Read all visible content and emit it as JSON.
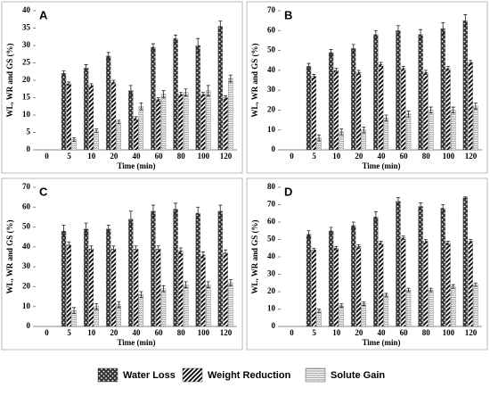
{
  "chart_data": [
    {
      "type": "bar",
      "panel_label": "A",
      "x_label": "Time (min)",
      "y_label": "WL, WR and GS (%)",
      "categories": [
        "0",
        "5",
        "10",
        "20",
        "40",
        "60",
        "80",
        "100",
        "120"
      ],
      "series": [
        {
          "name": "Water Loss",
          "color": "#333333",
          "values": [
            null,
            22,
            23.5,
            27,
            17,
            29.5,
            32,
            30,
            35.5
          ],
          "errors": [
            null,
            0.7,
            1,
            1,
            1.5,
            1,
            1,
            2,
            1.5
          ]
        },
        {
          "name": "Weight Reduction",
          "color": "#000000",
          "values": [
            null,
            19,
            18.5,
            19.5,
            9,
            14.5,
            16,
            16,
            15
          ],
          "errors": [
            null,
            0.5,
            0.5,
            0.5,
            0.5,
            0.5,
            0.5,
            0.5,
            0.5
          ]
        },
        {
          "name": "Solute Gain",
          "color": "#888888",
          "values": [
            null,
            3,
            5.5,
            8,
            12.5,
            16,
            16.5,
            17,
            20.5
          ],
          "errors": [
            null,
            0.5,
            0.5,
            0.5,
            1,
            1,
            1,
            1.5,
            1
          ]
        }
      ],
      "ylim": [
        0,
        40
      ],
      "yticks": [
        0,
        5,
        10,
        15,
        20,
        25,
        30,
        35,
        40
      ]
    },
    {
      "type": "bar",
      "panel_label": "B",
      "x_label": "Time (min)",
      "y_label": "WL, WR and GS (%)",
      "categories": [
        "0",
        "5",
        "10",
        "20",
        "40",
        "60",
        "80",
        "100",
        "120"
      ],
      "series": [
        {
          "name": "Water Loss",
          "color": "#333333",
          "values": [
            null,
            42,
            49,
            51,
            58,
            60,
            58,
            61,
            65
          ],
          "errors": [
            null,
            1.5,
            1.5,
            2,
            2,
            2.5,
            2.5,
            3,
            3
          ]
        },
        {
          "name": "Weight Reduction",
          "color": "#000000",
          "values": [
            null,
            37,
            40,
            39,
            43,
            41,
            39,
            41,
            44
          ],
          "errors": [
            null,
            1,
            1,
            1,
            1,
            1,
            1,
            1,
            1
          ]
        },
        {
          "name": "Solute Gain",
          "color": "#888888",
          "values": [
            null,
            6,
            9,
            10,
            16,
            18,
            20,
            20,
            22
          ],
          "errors": [
            null,
            1.5,
            1.5,
            1.5,
            1.5,
            1.5,
            1.5,
            1.5,
            1.5
          ]
        }
      ],
      "ylim": [
        0,
        70
      ],
      "yticks": [
        0,
        10,
        20,
        30,
        40,
        50,
        60,
        70
      ]
    },
    {
      "type": "bar",
      "panel_label": "C",
      "x_label": "Time (min)",
      "y_label": "WL, WR and GS (%)",
      "categories": [
        "0",
        "5",
        "10",
        "20",
        "40",
        "60",
        "80",
        "100",
        "120"
      ],
      "series": [
        {
          "name": "Water Loss",
          "color": "#333333",
          "values": [
            null,
            48,
            49,
            49,
            54,
            58,
            59,
            57,
            58
          ],
          "errors": [
            null,
            3,
            3,
            2,
            4,
            3,
            3,
            3,
            3
          ]
        },
        {
          "name": "Weight Reduction",
          "color": "#000000",
          "values": [
            null,
            41,
            39,
            39,
            39,
            39,
            38,
            36,
            37
          ],
          "errors": [
            null,
            1.5,
            1.5,
            1.5,
            1.5,
            1.5,
            1.5,
            1.5,
            1.5
          ]
        },
        {
          "name": "Solute Gain",
          "color": "#888888",
          "values": [
            null,
            8,
            10,
            11,
            16,
            19,
            21,
            21,
            22
          ],
          "errors": [
            null,
            1.5,
            1.5,
            1.5,
            1.5,
            1.5,
            1.5,
            1.5,
            1.5
          ]
        }
      ],
      "ylim": [
        0,
        70
      ],
      "yticks": [
        0,
        10,
        20,
        30,
        40,
        50,
        60,
        70
      ]
    },
    {
      "type": "bar",
      "panel_label": "D",
      "x_label": "Time (min)",
      "y_label": "WL, WR and GS (%)",
      "categories": [
        "0",
        "5",
        "10",
        "20",
        "40",
        "60",
        "80",
        "100",
        "120"
      ],
      "series": [
        {
          "name": "Water Loss",
          "color": "#333333",
          "values": [
            null,
            53,
            55,
            58,
            63,
            72,
            69,
            68,
            74
          ],
          "errors": [
            null,
            2,
            2,
            2,
            3,
            2,
            2,
            2,
            0.5
          ]
        },
        {
          "name": "Weight Reduction",
          "color": "#000000",
          "values": [
            null,
            44,
            45,
            46,
            48,
            51,
            49,
            48,
            49
          ],
          "errors": [
            null,
            1,
            1,
            1,
            1,
            1,
            1,
            1,
            1
          ]
        },
        {
          "name": "Solute Gain",
          "color": "#888888",
          "values": [
            null,
            9,
            12,
            13,
            18,
            21,
            21,
            23,
            24
          ],
          "errors": [
            null,
            1,
            1,
            1,
            1,
            1,
            1,
            1,
            1
          ]
        }
      ],
      "ylim": [
        0,
        80
      ],
      "yticks": [
        0,
        10,
        20,
        30,
        40,
        50,
        60,
        70,
        80
      ]
    }
  ]
}
